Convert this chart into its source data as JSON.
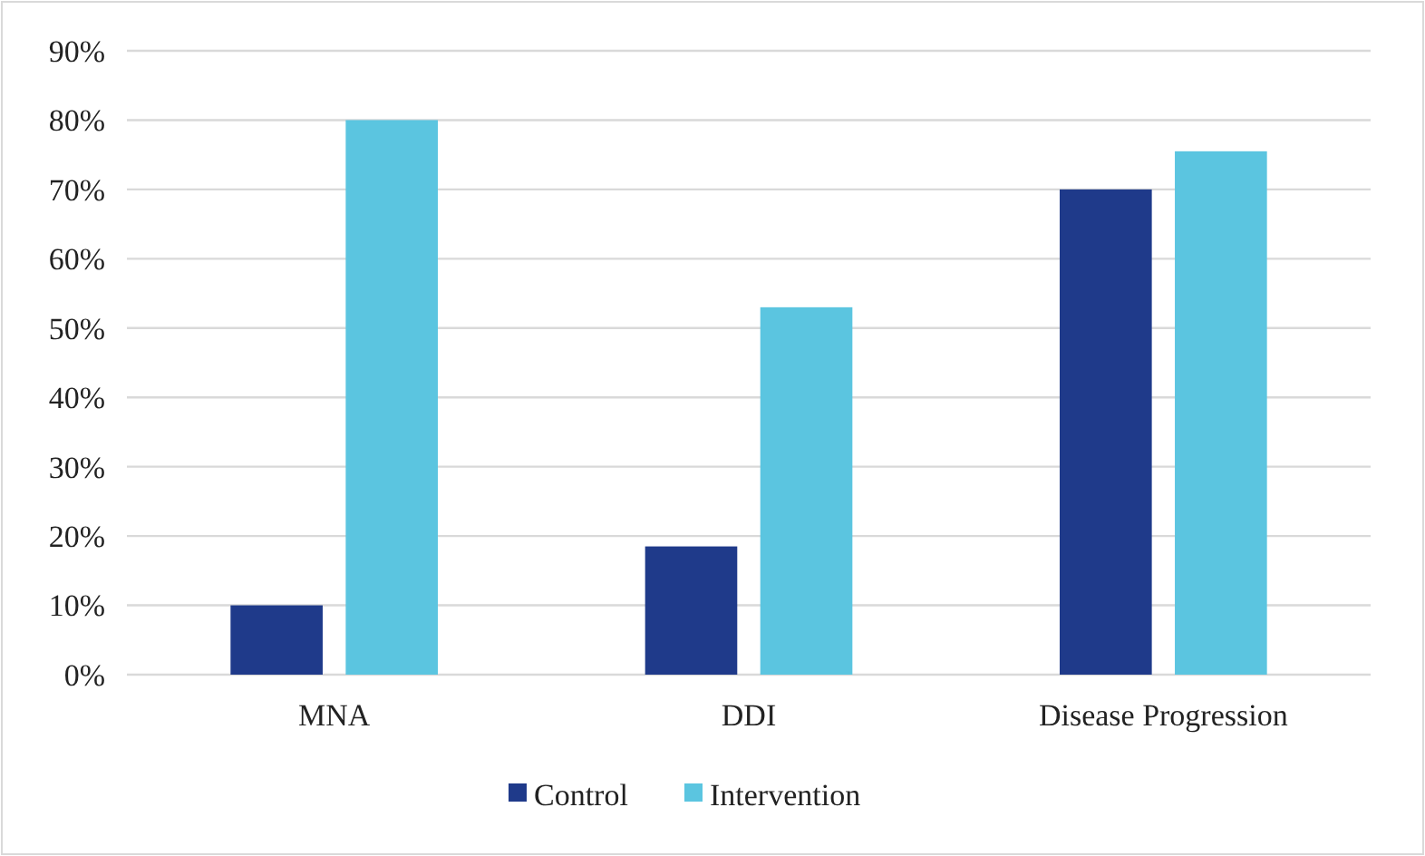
{
  "chart_data": {
    "type": "bar",
    "categories": [
      "MNA",
      "DDI",
      "Disease Progression"
    ],
    "series": [
      {
        "name": "Control",
        "color": "#1f3a8a",
        "values": [
          10,
          18.5,
          70
        ]
      },
      {
        "name": "Intervention",
        "color": "#5bc5e0",
        "values": [
          80,
          53,
          75.5
        ]
      }
    ],
    "ylim": [
      0,
      90
    ],
    "yticks": [
      {
        "value": 0,
        "label": "0%"
      },
      {
        "value": 10,
        "label": "10%"
      },
      {
        "value": 20,
        "label": "20%"
      },
      {
        "value": 30,
        "label": "30%"
      },
      {
        "value": 40,
        "label": "40%"
      },
      {
        "value": 50,
        "label": "50%"
      },
      {
        "value": 60,
        "label": "60%"
      },
      {
        "value": 70,
        "label": "70%"
      },
      {
        "value": 80,
        "label": "80%"
      },
      {
        "value": 90,
        "label": "90%"
      }
    ],
    "grid": "y",
    "legend": "bottom"
  }
}
